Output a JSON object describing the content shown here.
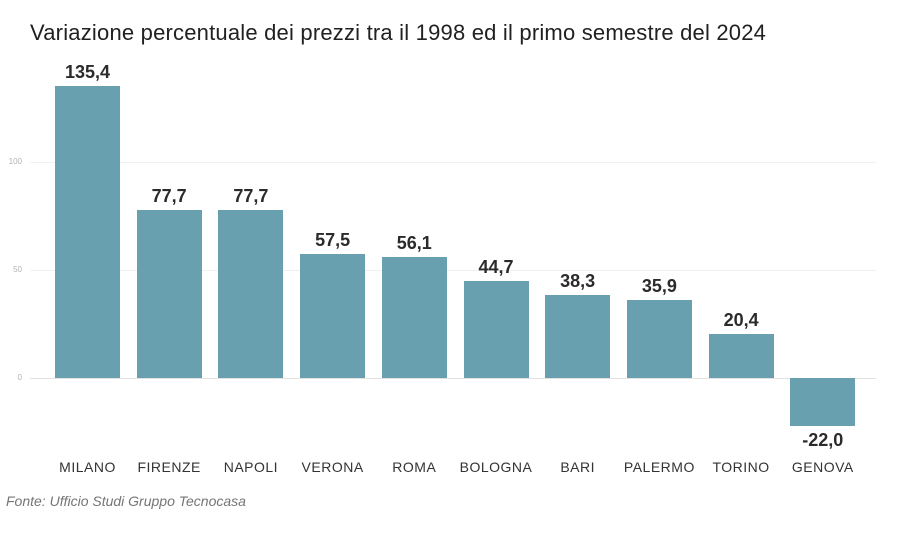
{
  "title": "Variazione percentuale dei prezzi tra il 1998 ed il primo semestre del 2024",
  "source": "Fonte: Ufficio Studi Gruppo Tecnocasa",
  "colors": {
    "bar": "#68a0b0",
    "title_text": "#212121",
    "value_label_text": "#2b2b2b",
    "category_label_text": "#333333",
    "tick_text": "#b3b3b3",
    "gridline": "#f0f0f0",
    "zero_line": "#e2e2e2",
    "background": "#ffffff",
    "source_text": "#757575"
  },
  "chart_data": {
    "type": "bar",
    "title": "Variazione percentuale dei prezzi tra il 1998 ed il primo semestre del 2024",
    "categories": [
      "MILANO",
      "FIRENZE",
      "NAPOLI",
      "VERONA",
      "ROMA",
      "BOLOGNA",
      "BARI",
      "PALERMO",
      "TORINO",
      "GENOVA"
    ],
    "values": [
      135.4,
      77.7,
      77.7,
      57.5,
      56.1,
      44.7,
      38.3,
      35.9,
      20.4,
      -22.0
    ],
    "value_labels": [
      "135,4",
      "77,7",
      "77,7",
      "57,5",
      "56,1",
      "44,7",
      "38,3",
      "35,9",
      "20,4",
      "-22,0"
    ],
    "xlabel": "",
    "ylabel": "",
    "y_ticks": [
      0,
      50,
      100
    ],
    "y_tick_labels": [
      "0",
      "50",
      "100"
    ],
    "ylim": [
      -40,
      150
    ],
    "grid": true,
    "legend": false,
    "decimal_separator": "comma",
    "source": "Fonte: Ufficio Studi Gruppo Tecnocasa"
  }
}
